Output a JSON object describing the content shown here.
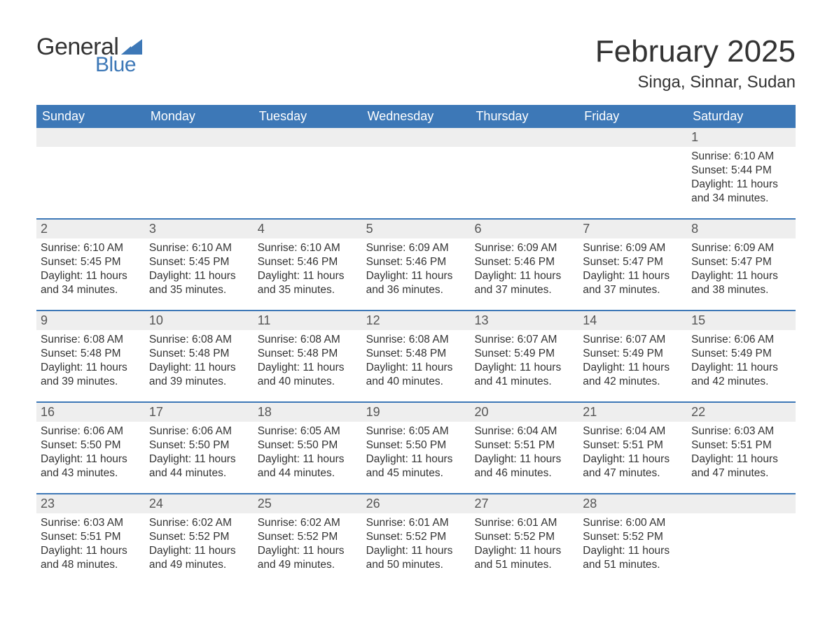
{
  "logo": {
    "word1": "General",
    "word2": "Blue",
    "text_color": "#333333",
    "accent_color": "#3d78b7"
  },
  "header": {
    "month_title": "February 2025",
    "location": "Singa, Sinnar, Sudan"
  },
  "styling": {
    "header_bar_color": "#3d78b7",
    "week_separator_color": "#3d78b7",
    "daynum_row_bg": "#eeeeee",
    "background_color": "#ffffff",
    "weekday_text_color": "#ffffff",
    "body_text_color": "#333333",
    "daynum_text_color": "#555555",
    "weekday_fontsize": 18,
    "daynum_fontsize": 18,
    "detail_fontsize": 15.5,
    "month_title_fontsize": 44,
    "location_fontsize": 24
  },
  "calendar": {
    "type": "table",
    "weekdays": [
      "Sunday",
      "Monday",
      "Tuesday",
      "Wednesday",
      "Thursday",
      "Friday",
      "Saturday"
    ],
    "weeks": [
      {
        "days": [
          {
            "num": "",
            "sunrise": "",
            "sunset": "",
            "daylight": ""
          },
          {
            "num": "",
            "sunrise": "",
            "sunset": "",
            "daylight": ""
          },
          {
            "num": "",
            "sunrise": "",
            "sunset": "",
            "daylight": ""
          },
          {
            "num": "",
            "sunrise": "",
            "sunset": "",
            "daylight": ""
          },
          {
            "num": "",
            "sunrise": "",
            "sunset": "",
            "daylight": ""
          },
          {
            "num": "",
            "sunrise": "",
            "sunset": "",
            "daylight": ""
          },
          {
            "num": "1",
            "sunrise": "Sunrise: 6:10 AM",
            "sunset": "Sunset: 5:44 PM",
            "daylight": "Daylight: 11 hours and 34 minutes."
          }
        ]
      },
      {
        "days": [
          {
            "num": "2",
            "sunrise": "Sunrise: 6:10 AM",
            "sunset": "Sunset: 5:45 PM",
            "daylight": "Daylight: 11 hours and 34 minutes."
          },
          {
            "num": "3",
            "sunrise": "Sunrise: 6:10 AM",
            "sunset": "Sunset: 5:45 PM",
            "daylight": "Daylight: 11 hours and 35 minutes."
          },
          {
            "num": "4",
            "sunrise": "Sunrise: 6:10 AM",
            "sunset": "Sunset: 5:46 PM",
            "daylight": "Daylight: 11 hours and 35 minutes."
          },
          {
            "num": "5",
            "sunrise": "Sunrise: 6:09 AM",
            "sunset": "Sunset: 5:46 PM",
            "daylight": "Daylight: 11 hours and 36 minutes."
          },
          {
            "num": "6",
            "sunrise": "Sunrise: 6:09 AM",
            "sunset": "Sunset: 5:46 PM",
            "daylight": "Daylight: 11 hours and 37 minutes."
          },
          {
            "num": "7",
            "sunrise": "Sunrise: 6:09 AM",
            "sunset": "Sunset: 5:47 PM",
            "daylight": "Daylight: 11 hours and 37 minutes."
          },
          {
            "num": "8",
            "sunrise": "Sunrise: 6:09 AM",
            "sunset": "Sunset: 5:47 PM",
            "daylight": "Daylight: 11 hours and 38 minutes."
          }
        ]
      },
      {
        "days": [
          {
            "num": "9",
            "sunrise": "Sunrise: 6:08 AM",
            "sunset": "Sunset: 5:48 PM",
            "daylight": "Daylight: 11 hours and 39 minutes."
          },
          {
            "num": "10",
            "sunrise": "Sunrise: 6:08 AM",
            "sunset": "Sunset: 5:48 PM",
            "daylight": "Daylight: 11 hours and 39 minutes."
          },
          {
            "num": "11",
            "sunrise": "Sunrise: 6:08 AM",
            "sunset": "Sunset: 5:48 PM",
            "daylight": "Daylight: 11 hours and 40 minutes."
          },
          {
            "num": "12",
            "sunrise": "Sunrise: 6:08 AM",
            "sunset": "Sunset: 5:48 PM",
            "daylight": "Daylight: 11 hours and 40 minutes."
          },
          {
            "num": "13",
            "sunrise": "Sunrise: 6:07 AM",
            "sunset": "Sunset: 5:49 PM",
            "daylight": "Daylight: 11 hours and 41 minutes."
          },
          {
            "num": "14",
            "sunrise": "Sunrise: 6:07 AM",
            "sunset": "Sunset: 5:49 PM",
            "daylight": "Daylight: 11 hours and 42 minutes."
          },
          {
            "num": "15",
            "sunrise": "Sunrise: 6:06 AM",
            "sunset": "Sunset: 5:49 PM",
            "daylight": "Daylight: 11 hours and 42 minutes."
          }
        ]
      },
      {
        "days": [
          {
            "num": "16",
            "sunrise": "Sunrise: 6:06 AM",
            "sunset": "Sunset: 5:50 PM",
            "daylight": "Daylight: 11 hours and 43 minutes."
          },
          {
            "num": "17",
            "sunrise": "Sunrise: 6:06 AM",
            "sunset": "Sunset: 5:50 PM",
            "daylight": "Daylight: 11 hours and 44 minutes."
          },
          {
            "num": "18",
            "sunrise": "Sunrise: 6:05 AM",
            "sunset": "Sunset: 5:50 PM",
            "daylight": "Daylight: 11 hours and 44 minutes."
          },
          {
            "num": "19",
            "sunrise": "Sunrise: 6:05 AM",
            "sunset": "Sunset: 5:50 PM",
            "daylight": "Daylight: 11 hours and 45 minutes."
          },
          {
            "num": "20",
            "sunrise": "Sunrise: 6:04 AM",
            "sunset": "Sunset: 5:51 PM",
            "daylight": "Daylight: 11 hours and 46 minutes."
          },
          {
            "num": "21",
            "sunrise": "Sunrise: 6:04 AM",
            "sunset": "Sunset: 5:51 PM",
            "daylight": "Daylight: 11 hours and 47 minutes."
          },
          {
            "num": "22",
            "sunrise": "Sunrise: 6:03 AM",
            "sunset": "Sunset: 5:51 PM",
            "daylight": "Daylight: 11 hours and 47 minutes."
          }
        ]
      },
      {
        "days": [
          {
            "num": "23",
            "sunrise": "Sunrise: 6:03 AM",
            "sunset": "Sunset: 5:51 PM",
            "daylight": "Daylight: 11 hours and 48 minutes."
          },
          {
            "num": "24",
            "sunrise": "Sunrise: 6:02 AM",
            "sunset": "Sunset: 5:52 PM",
            "daylight": "Daylight: 11 hours and 49 minutes."
          },
          {
            "num": "25",
            "sunrise": "Sunrise: 6:02 AM",
            "sunset": "Sunset: 5:52 PM",
            "daylight": "Daylight: 11 hours and 49 minutes."
          },
          {
            "num": "26",
            "sunrise": "Sunrise: 6:01 AM",
            "sunset": "Sunset: 5:52 PM",
            "daylight": "Daylight: 11 hours and 50 minutes."
          },
          {
            "num": "27",
            "sunrise": "Sunrise: 6:01 AM",
            "sunset": "Sunset: 5:52 PM",
            "daylight": "Daylight: 11 hours and 51 minutes."
          },
          {
            "num": "28",
            "sunrise": "Sunrise: 6:00 AM",
            "sunset": "Sunset: 5:52 PM",
            "daylight": "Daylight: 11 hours and 51 minutes."
          },
          {
            "num": "",
            "sunrise": "",
            "sunset": "",
            "daylight": ""
          }
        ]
      }
    ]
  }
}
